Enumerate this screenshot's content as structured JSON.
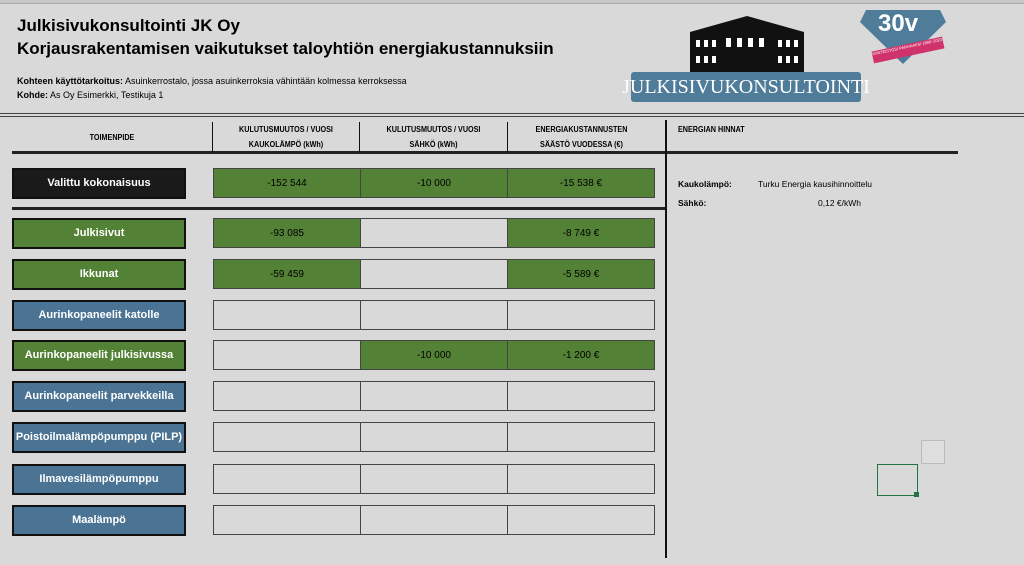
{
  "header": {
    "company": "Julkisivukonsultointi JK Oy",
    "title": "Korjausrakentamisen vaikutukset taloyhtiön energiakustannuksiin",
    "purpose_label": "Kohteen käyttötarkoitus:",
    "purpose_value": " Asuinkerrostalo, jossa asuinkerroksia vähintään kolmessa kerroksessa",
    "target_label": "Kohde:",
    "target_value": " As Oy Esimerkki, Testikuja 1"
  },
  "logo": {
    "text": "JULKISIVUKONSULTOINTI",
    "badge": "30v",
    "ribbon": "KIINTEISTÖSI PARHAAKSI 1993–2023"
  },
  "columns": [
    "TOIMENPIDE",
    "KULUTUSMUUTOS / VUOSI KAUKOLÄMPÖ (kWh)",
    "KULUTUSMUUTOS / VUOSI SÄHKÖ (kWh)",
    "ENERGIAKUSTANNUSTEN SÄÄSTÖ VUODESSA (€)"
  ],
  "columns_l1": [
    "KULUTUSMUUTOS / VUOSI",
    "KULUTUSMUUTOS / VUOSI",
    "ENERGIAKUSTANNUSTEN"
  ],
  "columns_l2": [
    "KAUKOLÄMPÖ (kWh)",
    "SÄHKÖ (kWh)",
    "SÄÄSTÖ VUODESSA (€)"
  ],
  "total": {
    "label": "Valittu kokonaisuus",
    "heat": "-152 544",
    "elec": "-10 000",
    "saving": "-15 538 €"
  },
  "rows": [
    {
      "label": "Julkisivut",
      "heat": "-93 085",
      "elec": "",
      "saving": "-8 749 €",
      "active": true
    },
    {
      "label": "Ikkunat",
      "heat": "-59 459",
      "elec": "",
      "saving": "-5 589 €",
      "active": true
    },
    {
      "label": "Aurinkopaneelit katolle",
      "heat": "",
      "elec": "",
      "saving": "",
      "active": false
    },
    {
      "label": "Aurinkopaneelit julkisivussa",
      "heat": "",
      "elec": "-10 000",
      "saving": "-1 200 €",
      "active": true
    },
    {
      "label": "Aurinkopaneelit parvekkeilla",
      "heat": "",
      "elec": "",
      "saving": "",
      "active": false
    },
    {
      "label": "Poistoilmalämpöpumppu (PILP)",
      "heat": "",
      "elec": "",
      "saving": "",
      "active": false
    },
    {
      "label": "Ilmavesilämpöpumppu",
      "heat": "",
      "elec": "",
      "saving": "",
      "active": false
    },
    {
      "label": "Maalämpö",
      "heat": "",
      "elec": "",
      "saving": "",
      "active": false
    }
  ],
  "prices": {
    "title": "ENERGIAN HINNAT",
    "heat_label": "Kaukolämpö:",
    "heat_value": "Turku Energia kausihinnoittelu",
    "elec_label": "Sähkö:",
    "elec_value": "0,12 €/kWh"
  },
  "colors": {
    "active": "#538135",
    "inactive": "#4a7394",
    "total": "#1a1a1a"
  }
}
